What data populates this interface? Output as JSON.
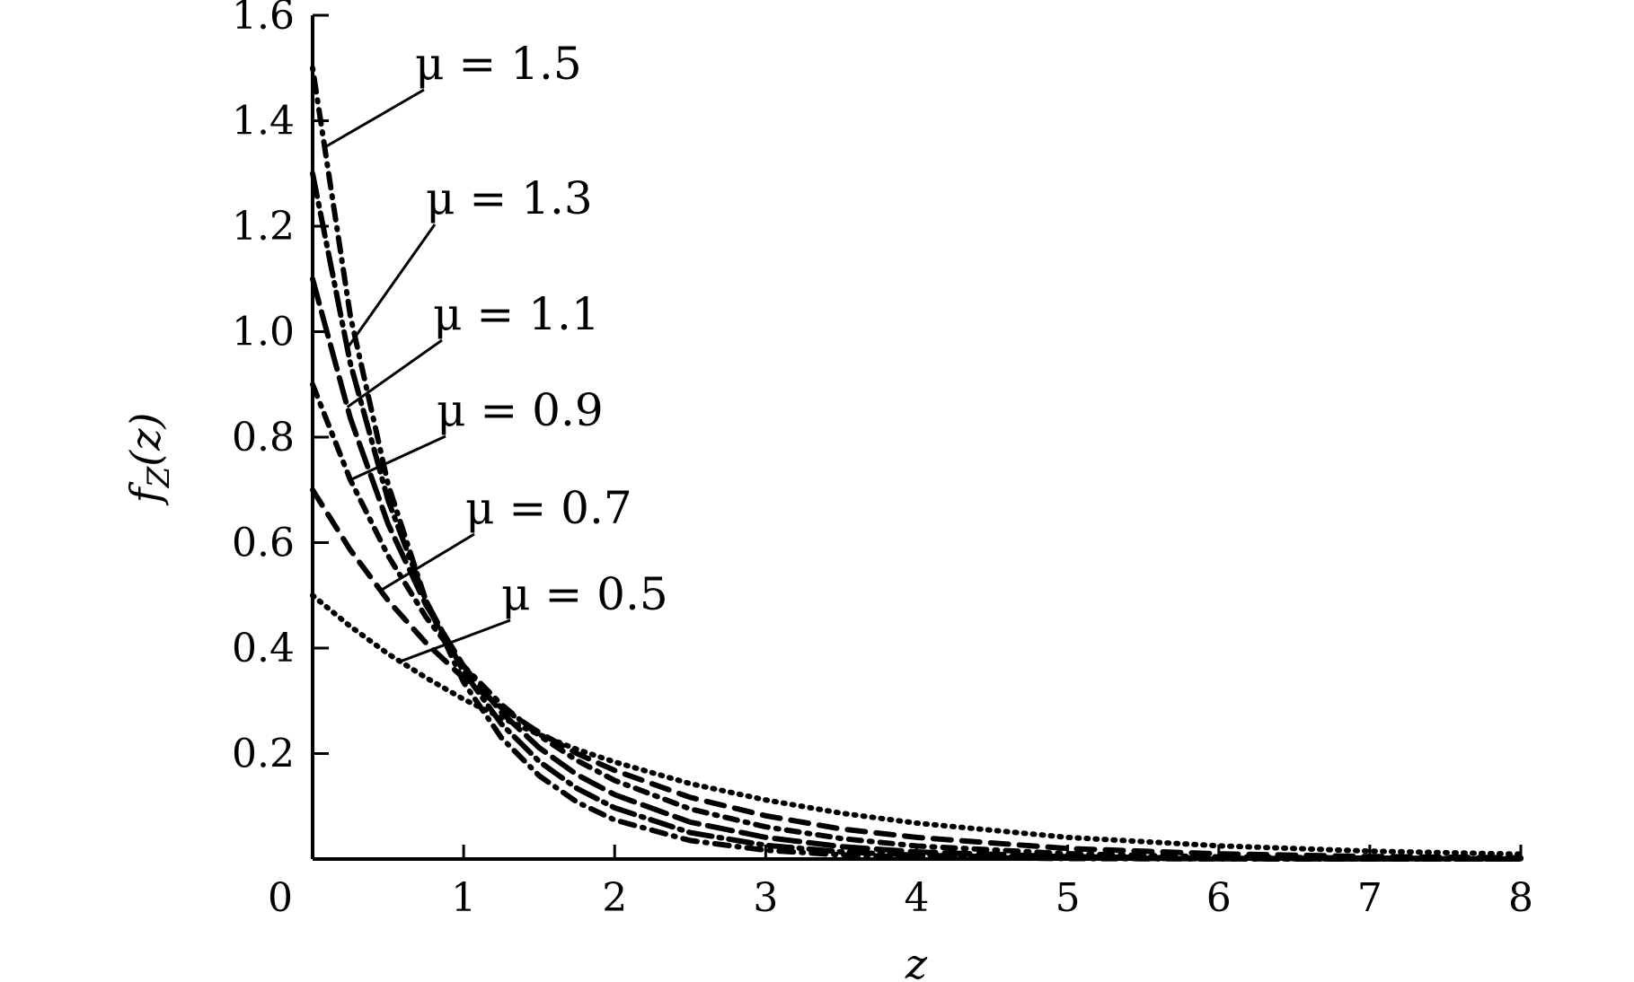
{
  "chart_data": {
    "type": "line",
    "title": "",
    "xlabel": "z",
    "ylabel": "f_Z(z)",
    "xlim": [
      0,
      8
    ],
    "ylim": [
      0,
      1.6
    ],
    "grid": false,
    "x_ticks": [
      "0",
      "1",
      "2",
      "3",
      "4",
      "5",
      "6",
      "7",
      "8"
    ],
    "y_ticks": [
      "0.2",
      "0.4",
      "0.6",
      "0.8",
      "1.0",
      "1.2",
      "1.4",
      "1.6"
    ],
    "x": [
      0,
      0.25,
      0.5,
      0.75,
      1,
      1.25,
      1.5,
      1.75,
      2,
      2.5,
      3,
      3.5,
      4,
      5,
      6,
      7,
      8
    ],
    "series": [
      {
        "name": "μ = 1.5",
        "dash": "2,9,16,9",
        "values": [
          1.5,
          1.03,
          0.71,
          0.49,
          0.335,
          0.23,
          0.158,
          0.108,
          0.074,
          0.035,
          0.0166,
          0.0078,
          0.0037,
          0.0008,
          0.0002,
          4e-05,
          1e-05
        ]
      },
      {
        "name": "μ = 1.3",
        "dash": "26,8,3,8",
        "values": [
          1.3,
          0.94,
          0.68,
          0.49,
          0.355,
          0.256,
          0.185,
          0.134,
          0.097,
          0.05,
          0.026,
          0.0136,
          0.0071,
          0.0019,
          0.0005,
          0.00013,
          4e-05
        ]
      },
      {
        "name": "μ = 1.1",
        "dash": "28,10",
        "values": [
          1.1,
          0.836,
          0.635,
          0.482,
          0.366,
          0.278,
          0.211,
          0.16,
          0.122,
          0.07,
          0.041,
          0.0235,
          0.0135,
          0.0045,
          0.0015,
          0.0005,
          0.00017
        ]
      },
      {
        "name": "μ = 0.9",
        "dash": "14,9,3,9",
        "values": [
          0.9,
          0.719,
          0.575,
          0.459,
          0.366,
          0.293,
          0.234,
          0.187,
          0.149,
          0.095,
          0.061,
          0.039,
          0.0247,
          0.0101,
          0.0041,
          0.0017,
          0.0007
        ]
      },
      {
        "name": "μ = 0.7",
        "dash": "20,12",
        "values": [
          0.7,
          0.586,
          0.49,
          0.41,
          0.343,
          0.287,
          0.24,
          0.2,
          0.168,
          0.117,
          0.082,
          0.057,
          0.041,
          0.02,
          0.0098,
          0.0048,
          0.0024
        ]
      },
      {
        "name": "μ = 0.5",
        "dash": "2,8",
        "values": [
          0.5,
          0.441,
          0.389,
          0.344,
          0.303,
          0.268,
          0.236,
          0.208,
          0.184,
          0.143,
          0.112,
          0.087,
          0.068,
          0.041,
          0.025,
          0.015,
          0.0092
        ]
      }
    ],
    "annotations": [
      {
        "text": "μ = 1.5",
        "series": 0
      },
      {
        "text": "μ = 1.3",
        "series": 1
      },
      {
        "text": "μ = 1.1",
        "series": 2
      },
      {
        "text": "μ = 0.9",
        "series": 3
      },
      {
        "text": "μ = 0.7",
        "series": 4
      },
      {
        "text": "μ = 0.5",
        "series": 5
      }
    ],
    "colors": {
      "line": "#000000",
      "background": "#ffffff"
    }
  }
}
